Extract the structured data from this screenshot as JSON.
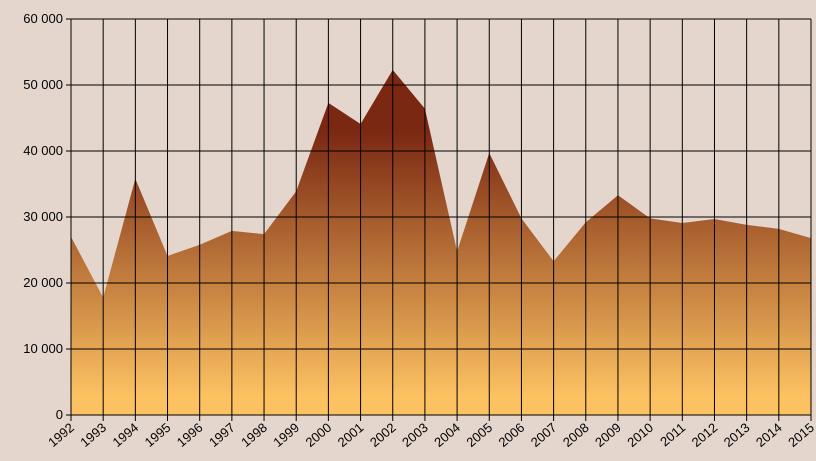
{
  "chart_data": {
    "type": "area",
    "categories": [
      "1992",
      "1993",
      "1994",
      "1995",
      "1996",
      "1997",
      "1998",
      "1999",
      "2000",
      "2001",
      "2002",
      "2003",
      "2004",
      "2005",
      "2006",
      "2007",
      "2008",
      "2009",
      "2010",
      "2011",
      "2012",
      "2013",
      "2014",
      "2015"
    ],
    "values": [
      27000,
      17800,
      35800,
      24100,
      25800,
      27900,
      27400,
      33900,
      47300,
      44100,
      52300,
      46400,
      24800,
      39700,
      29800,
      23300,
      29200,
      33300,
      29800,
      29100,
      29700,
      28800,
      28200,
      26800
    ],
    "gradient": [
      "#7a2812",
      "#fcc262"
    ],
    "ylim": [
      0,
      60000
    ],
    "yticks": [
      0,
      {
        "value": 10000,
        "label": "10 000"
      },
      {
        "value": 20000,
        "label": "20 000"
      },
      {
        "value": 30000,
        "label": "30 000"
      },
      {
        "value": 40000,
        "label": "40 000"
      },
      {
        "value": 50000,
        "label": "50 000"
      },
      {
        "value": 60000,
        "label": "60 000"
      }
    ],
    "grid": true
  }
}
